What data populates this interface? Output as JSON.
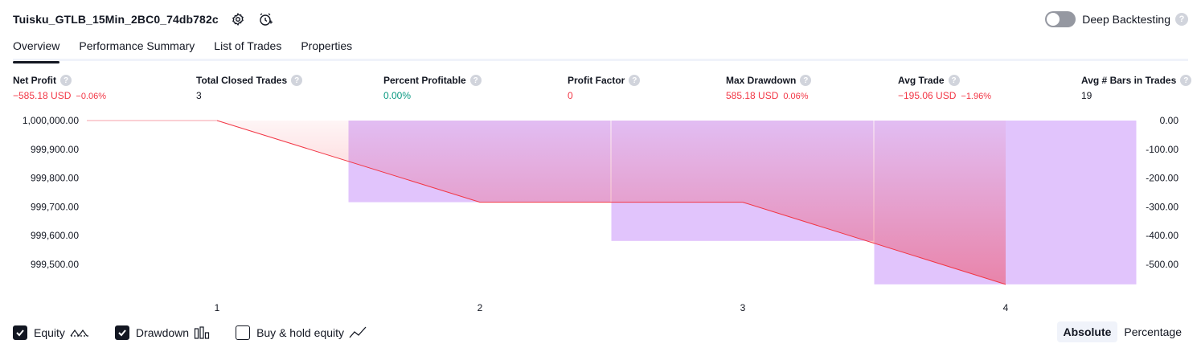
{
  "header": {
    "strategy_title": "Tuisku_GTLB_15Min_2BC0_74db782c",
    "settings_icon": "gear-icon",
    "alert_icon": "alarm-clock-plus-icon"
  },
  "deep_backtesting": {
    "label": "Deep Backtesting",
    "enabled": false,
    "help": "?"
  },
  "tabs": [
    {
      "label": "Overview",
      "active": true
    },
    {
      "label": "Performance Summary",
      "active": false
    },
    {
      "label": "List of Trades",
      "active": false
    },
    {
      "label": "Properties",
      "active": false
    }
  ],
  "metrics": [
    {
      "label": "Net Profit",
      "value": "−585.18 USD",
      "pct": "−0.06%",
      "color": "red"
    },
    {
      "label": "Total Closed Trades",
      "value": "3",
      "pct": "",
      "color": "dark"
    },
    {
      "label": "Percent Profitable",
      "value": "0.00%",
      "pct": "",
      "color": "green"
    },
    {
      "label": "Profit Factor",
      "value": "0",
      "pct": "",
      "color": "red"
    },
    {
      "label": "Max Drawdown",
      "value": "585.18 USD",
      "pct": "0.06%",
      "color": "red"
    },
    {
      "label": "Avg Trade",
      "value": "−195.06 USD",
      "pct": "−1.96%",
      "color": "red"
    },
    {
      "label": "Avg # Bars in Trades",
      "value": "19",
      "pct": "",
      "color": "dark"
    }
  ],
  "chart_data": {
    "type": "line",
    "x_ticks": [
      "1",
      "2",
      "3",
      "4"
    ],
    "left_axis_ticks": [
      "1,000,000.00",
      "999,900.00",
      "999,800.00",
      "999,700.00",
      "999,600.00",
      "999,500.00"
    ],
    "right_axis_ticks": [
      "0.00",
      "-100.00",
      "-200.00",
      "-300.00",
      "-400.00",
      "-500.00"
    ],
    "equity": {
      "x": [
        1,
        2,
        3,
        4
      ],
      "values": [
        1000000.0,
        999708.33,
        999708.33,
        999414.82
      ],
      "color": "#f23645"
    },
    "drawdown": {
      "x": [
        2,
        3,
        4
      ],
      "values": [
        -291.67,
        -430.0,
        -585.18
      ],
      "color": "#e1c4fc"
    },
    "ylim_left": [
      999400,
      1000000
    ],
    "ylim_right": [
      -600,
      0
    ]
  },
  "legend": {
    "equity": {
      "label": "Equity",
      "checked": true,
      "icon": "equity-line-icon"
    },
    "drawdown": {
      "label": "Drawdown",
      "checked": true,
      "icon": "bars-icon"
    },
    "buyhold": {
      "label": "Buy & hold equity",
      "checked": false,
      "icon": "trend-line-icon"
    }
  },
  "mode": {
    "absolute": "Absolute",
    "percentage": "Percentage",
    "active": "absolute"
  }
}
